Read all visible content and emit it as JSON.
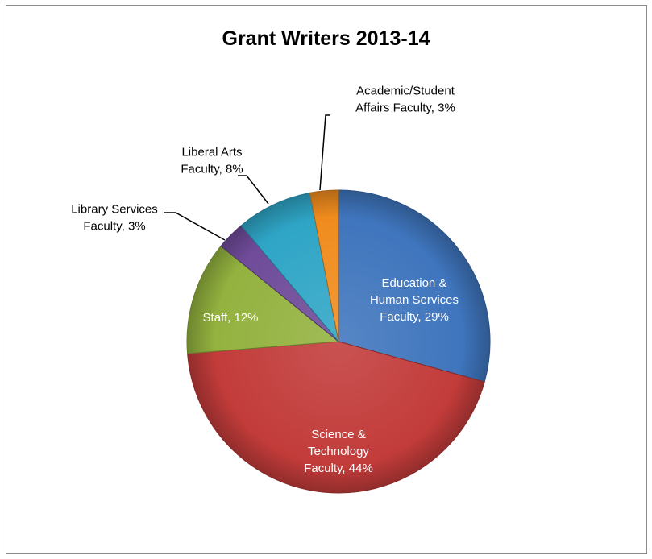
{
  "chart_data": {
    "type": "pie",
    "title": "Grant Writers 2013-14",
    "slices": [
      {
        "label": "Education & Human Services Faculty, 29%",
        "label_lines": [
          "Education &",
          "Human Services",
          "Faculty, 29%"
        ],
        "value": 29,
        "color": "#3f75bd",
        "label_color": "#ffffff",
        "label_position": "inside"
      },
      {
        "label": "Science & Technology Faculty, 44%",
        "label_lines": [
          "Science &",
          "Technology",
          "Faculty, 44%"
        ],
        "value": 44,
        "color": "#c23c3a",
        "label_color": "#ffffff",
        "label_position": "inside"
      },
      {
        "label": "Staff, 12%",
        "label_lines": [
          "Staff, 12%"
        ],
        "value": 12,
        "color": "#93b23f",
        "label_color": "#ffffff",
        "label_position": "inside"
      },
      {
        "label": "Library Services Faculty, 3%",
        "label_lines": [
          "Library Services",
          "Faculty, 3%"
        ],
        "value": 3,
        "color": "#6f4b99",
        "label_color": "#000000",
        "label_position": "outside"
      },
      {
        "label": "Liberal Arts Faculty, 8%",
        "label_lines": [
          "Liberal Arts",
          "Faculty, 8%"
        ],
        "value": 8,
        "color": "#2fa5c6",
        "label_color": "#000000",
        "label_position": "outside"
      },
      {
        "label": "Academic/Student Affairs Faculty, 3%",
        "label_lines": [
          "Academic/Student",
          "Affairs Faculty, 3%"
        ],
        "value": 3,
        "color": "#f08c1e",
        "label_color": "#000000",
        "label_position": "outside"
      }
    ],
    "start": "12 o'clock",
    "direction": "clockwise",
    "legend": "none"
  }
}
